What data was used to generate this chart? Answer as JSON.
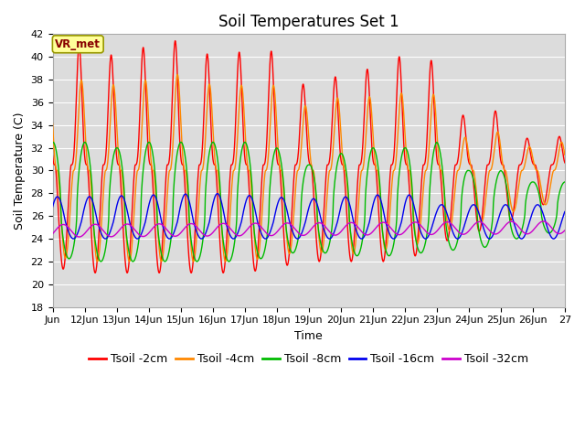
{
  "title": "Soil Temperatures Set 1",
  "xlabel": "Time",
  "ylabel": "Soil Temperature (C)",
  "ylim": [
    18,
    42
  ],
  "yticks": [
    18,
    20,
    22,
    24,
    26,
    28,
    30,
    32,
    34,
    36,
    38,
    40,
    42
  ],
  "x_start_day": 11.0,
  "x_end_day": 27.0,
  "xtick_days": [
    11,
    12,
    13,
    14,
    15,
    16,
    17,
    18,
    19,
    20,
    21,
    22,
    23,
    24,
    25,
    26,
    27
  ],
  "xtick_labels": [
    "Jun",
    "12Jun",
    "13Jun",
    "14Jun",
    "15Jun",
    "16Jun",
    "17Jun",
    "18Jun",
    "19Jun",
    "20Jun",
    "21Jun",
    "22Jun",
    "23Jun",
    "24Jun",
    "25Jun",
    "26Jun",
    "27"
  ],
  "series_colors": [
    "#ff0000",
    "#ff8800",
    "#00bb00",
    "#0000ee",
    "#cc00cc"
  ],
  "series_labels": [
    "Tsoil -2cm",
    "Tsoil -4cm",
    "Tsoil -8cm",
    "Tsoil -16cm",
    "Tsoil -32cm"
  ],
  "background_color": "#dcdcdc",
  "vr_met_label": "VR_met",
  "vr_met_bg": "#ffff99",
  "vr_met_fg": "#880000",
  "grid_color": "#ffffff",
  "grid_linewidth": 0.8,
  "title_fontsize": 12,
  "axis_label_fontsize": 9,
  "tick_fontsize": 8,
  "legend_fontsize": 9,
  "n_points": 3000
}
